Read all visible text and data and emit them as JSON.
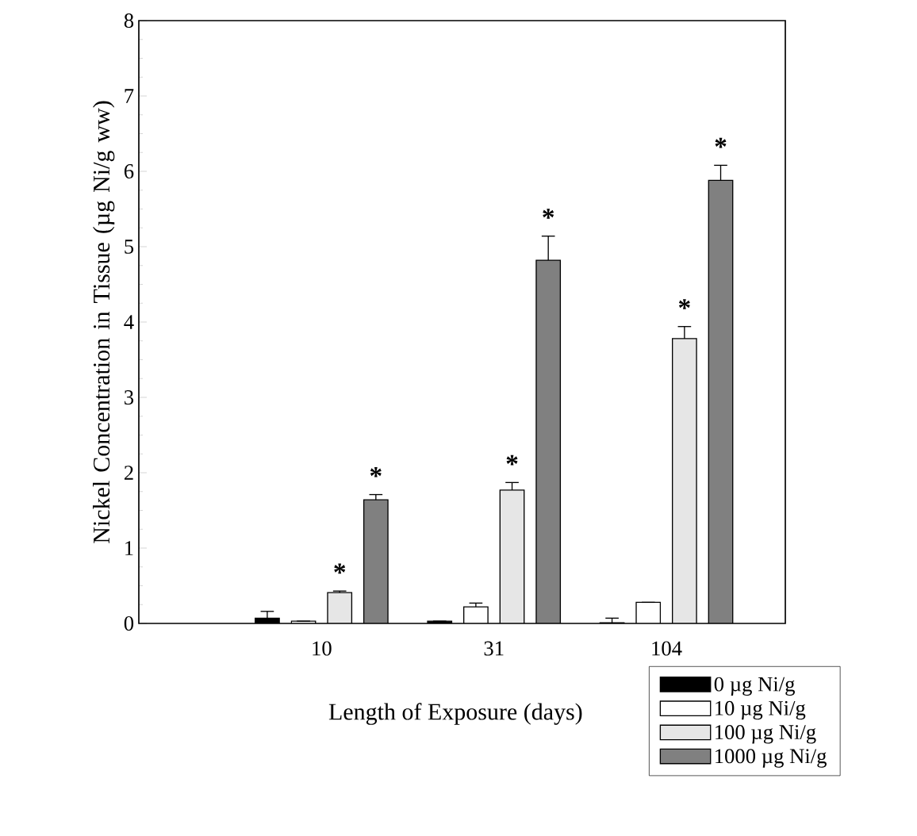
{
  "chart_data": {
    "type": "bar",
    "xlabel": "Length of Exposure (days)",
    "ylabel": "Nickel Concentration in Tissue (µg Ni/g ww)",
    "categories": [
      "10",
      "31",
      "104"
    ],
    "ylim": [
      0,
      8
    ],
    "yticks": [
      0,
      1,
      2,
      3,
      4,
      5,
      6,
      7,
      8
    ],
    "legend": "bottom right",
    "series": [
      {
        "name": "0 µg Ni/g",
        "color": "#000000",
        "values": [
          0.07,
          0.03,
          0.01
        ],
        "errors": [
          0.09,
          null,
          0.06
        ]
      },
      {
        "name": "10 µg Ni/g",
        "color": "#ffffff",
        "values": [
          0.03,
          0.22,
          0.28
        ],
        "errors": [
          null,
          0.05,
          null
        ]
      },
      {
        "name": "100 µg Ni/g",
        "color": "#e6e6e6",
        "values": [
          0.41,
          1.77,
          3.78
        ],
        "errors": [
          0.02,
          0.1,
          0.16
        ],
        "value_labels": [
          "*",
          "*",
          "*"
        ]
      },
      {
        "name": "1000 µg Ni/g",
        "color": "#808080",
        "values": [
          1.64,
          4.82,
          5.88
        ],
        "errors": [
          0.07,
          0.32,
          0.2
        ],
        "value_labels": [
          "*",
          "*",
          "*"
        ]
      }
    ]
  }
}
